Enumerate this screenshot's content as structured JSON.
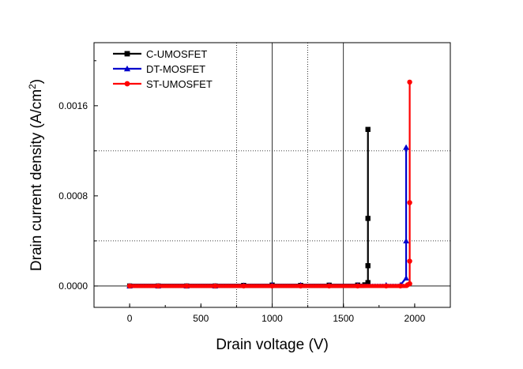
{
  "chart_data": {
    "type": "line",
    "xlabel": "Drain voltage (V)",
    "ylabel_main": "Drain current density (A/cm",
    "ylabel_sup": "2",
    "ylabel_close": ")",
    "xlim": [
      -250,
      2250
    ],
    "ylim": [
      -0.00019,
      0.00216
    ],
    "x_ticks": [
      0,
      500,
      1000,
      1500,
      2000
    ],
    "x_tick_labels": [
      "0",
      "500",
      "1000",
      "1500",
      "2000"
    ],
    "y_ticks": [
      0,
      0.0008,
      0.0016
    ],
    "y_tick_labels": [
      "0.0000",
      "0.0008",
      "0.0016"
    ],
    "grid": {
      "vertical_solid": [
        1000,
        1500
      ],
      "vertical_dotted": [
        750,
        1250
      ],
      "horizontal_dotted": [
        0.0012,
        0.0004
      ],
      "zero_line": true
    },
    "legend_position": "top-left",
    "series": [
      {
        "name": "C-UMOSFET",
        "color": "#000000",
        "marker": "square",
        "x": [
          0,
          200,
          400,
          600,
          800,
          1000,
          1200,
          1400,
          1600,
          1650,
          1672,
          1672,
          1672,
          1672
        ],
        "y": [
          0,
          0,
          0,
          0,
          5e-06,
          8e-06,
          5e-06,
          7e-06,
          8e-06,
          1e-05,
          3e-05,
          0.00018,
          0.0006,
          0.00139
        ]
      },
      {
        "name": "DT-MOSFET",
        "color": "#0000cc",
        "marker": "triangle",
        "x": [
          0,
          200,
          400,
          600,
          800,
          1000,
          1200,
          1400,
          1600,
          1800,
          1900,
          1940,
          1940,
          1940,
          1940
        ],
        "y": [
          0,
          0,
          0,
          0,
          5e-06,
          9e-06,
          8e-06,
          6e-06,
          7e-06,
          8e-06,
          1e-05,
          7e-05,
          0.0004,
          0.00123,
          0.00123
        ]
      },
      {
        "name": "ST-UMOSFET",
        "color": "#ff0000",
        "marker": "circle",
        "x": [
          0,
          200,
          400,
          600,
          800,
          1000,
          1200,
          1400,
          1600,
          1800,
          1900,
          1950,
          1965,
          1965,
          1965,
          1965
        ],
        "y": [
          0,
          0,
          0,
          0,
          0,
          0,
          0,
          0,
          0,
          0,
          0,
          1e-05,
          2e-05,
          0.00022,
          0.00074,
          0.00181
        ]
      }
    ]
  }
}
